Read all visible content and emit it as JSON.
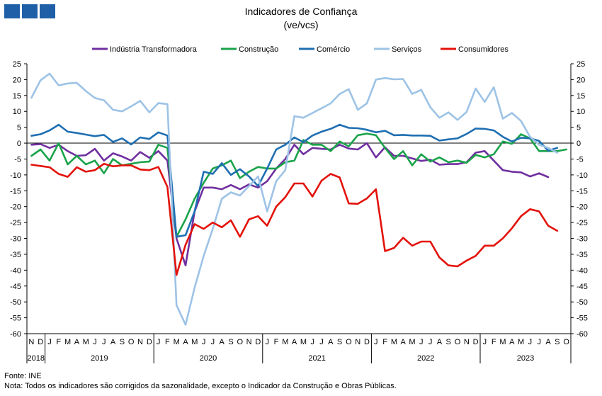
{
  "header": {
    "title": "Indicadores de Confiança",
    "subtitle": "(ve/vcs)"
  },
  "footer": {
    "source": "Fonte: INE",
    "note": "Nota: Todos os indicadores são corrigidos da sazonalidade,  excepto o Indicador da Construção e Obras Públicas."
  },
  "chart_data": {
    "type": "line",
    "title": "Indicadores de Confiança",
    "subtitle": "(ve/vcs)",
    "ylim": [
      -60,
      25
    ],
    "yticks": [
      25,
      20,
      15,
      10,
      5,
      0,
      -5,
      -10,
      -15,
      -20,
      -25,
      -30,
      -35,
      -40,
      -45,
      -50,
      -55,
      -60
    ],
    "y_right_axis": true,
    "grid": false,
    "zero_line": true,
    "legend_position": "top",
    "month_letters": [
      "N",
      "D",
      "J",
      "F",
      "M",
      "A",
      "M",
      "J",
      "J",
      "A",
      "S",
      "O",
      "N",
      "D",
      "J",
      "F",
      "M",
      "A",
      "M",
      "J",
      "J",
      "A",
      "S",
      "O",
      "N",
      "D",
      "J",
      "F",
      "M",
      "A",
      "M",
      "J",
      "J",
      "A",
      "S",
      "O",
      "N",
      "D",
      "J",
      "F",
      "M",
      "A",
      "M",
      "J",
      "J",
      "A",
      "S",
      "O",
      "N",
      "D",
      "J",
      "F",
      "M",
      "A",
      "M",
      "J",
      "J",
      "A",
      "S",
      "O"
    ],
    "x": [
      "2018-11",
      "2018-12",
      "2019-01",
      "2019-02",
      "2019-03",
      "2019-04",
      "2019-05",
      "2019-06",
      "2019-07",
      "2019-08",
      "2019-09",
      "2019-10",
      "2019-11",
      "2019-12",
      "2020-01",
      "2020-02",
      "2020-03",
      "2020-04",
      "2020-05",
      "2020-06",
      "2020-07",
      "2020-08",
      "2020-09",
      "2020-10",
      "2020-11",
      "2020-12",
      "2021-01",
      "2021-02",
      "2021-03",
      "2021-04",
      "2021-05",
      "2021-06",
      "2021-07",
      "2021-08",
      "2021-09",
      "2021-10",
      "2021-11",
      "2021-12",
      "2022-01",
      "2022-02",
      "2022-03",
      "2022-04",
      "2022-05",
      "2022-06",
      "2022-07",
      "2022-08",
      "2022-09",
      "2022-10",
      "2022-11",
      "2022-12",
      "2023-01",
      "2023-02",
      "2023-03",
      "2023-04",
      "2023-05",
      "2023-06",
      "2023-07",
      "2023-08",
      "2023-09",
      "2023-10"
    ],
    "years": [
      {
        "label": "2018",
        "start": 0,
        "end": 2
      },
      {
        "label": "2019",
        "start": 2,
        "end": 14
      },
      {
        "label": "2020",
        "start": 14,
        "end": 26
      },
      {
        "label": "2021",
        "start": 26,
        "end": 38
      },
      {
        "label": "2022",
        "start": 38,
        "end": 50
      },
      {
        "label": "2023",
        "start": 50,
        "end": 60
      }
    ],
    "series": [
      {
        "name": "Indústria Transformadora",
        "color": "#7030a0",
        "values": [
          -0.5,
          -0.3,
          -1.5,
          -0.5,
          -2.5,
          -4,
          -3.8,
          -1.8,
          -5.5,
          -3.2,
          -4.2,
          -5.5,
          -2.8,
          -4.6,
          -2.5,
          -5.5,
          -30,
          -38.5,
          -21.5,
          -14,
          -14,
          -14.5,
          -13.2,
          -14.5,
          -13,
          -14,
          -12,
          -8,
          -5,
          -0.5,
          -3.5,
          -1.5,
          -1.8,
          -2,
          -0.5,
          -1.7,
          -2,
          0,
          -4.5,
          -1.3,
          -4,
          -4,
          -4.8,
          -5.6,
          -5.2,
          -6.8,
          -6.6,
          -6.6,
          -6,
          -3,
          -2.5,
          -5.5,
          -8.5,
          -9,
          -9.2,
          -10.5,
          -9.5,
          -10.7,
          null,
          null
        ]
      },
      {
        "name": "Construção",
        "color": "#1aa34a",
        "values": [
          -4,
          -2,
          -5.5,
          0,
          -6.7,
          -4,
          -6.7,
          -5.5,
          -9.5,
          -5,
          -7,
          -6.5,
          -6,
          -5.8,
          -0.5,
          -1.5,
          -29.5,
          -24,
          -17.5,
          -12.5,
          -8,
          -7,
          -5.5,
          -11,
          -9,
          -7.5,
          -8,
          -8,
          -6,
          -5.5,
          1,
          -0.5,
          -0.5,
          -2.5,
          0.5,
          -1,
          2.5,
          3,
          2.5,
          -1.5,
          -5,
          -2.5,
          -7,
          -3.5,
          -5.8,
          -4.5,
          -6,
          -5.5,
          -6.2,
          -3.7,
          -4.5,
          -3.5,
          0.5,
          -0.2,
          2.8,
          1.5,
          -2.5,
          -2.5,
          -2.5,
          -2
        ]
      },
      {
        "name": "Comércio",
        "color": "#1f6fb2",
        "values": [
          2.3,
          2.8,
          4,
          5.8,
          3.6,
          3.2,
          2.7,
          2.2,
          2.6,
          0.4,
          1.5,
          -0.4,
          1.8,
          1.3,
          3.4,
          2.4,
          -29.5,
          -29,
          -21.5,
          -9,
          -9.7,
          -6.3,
          -10,
          -8.2,
          -10.5,
          -13.5,
          -8,
          -2,
          -0.5,
          1.8,
          0.3,
          2.4,
          3.6,
          4.5,
          5.8,
          4.8,
          4.7,
          4.2,
          3.4,
          3.9,
          2.5,
          2.6,
          2.4,
          2.4,
          2.3,
          0.8,
          1.2,
          1.5,
          2.9,
          4.6,
          4.5,
          4,
          2,
          0.5,
          1.7,
          1.5,
          0.7,
          -2.4,
          -1.5,
          null
        ]
      },
      {
        "name": "Serviços",
        "color": "#9dc3e6",
        "values": [
          14.3,
          19.8,
          21.9,
          18.2,
          18.8,
          19,
          16.4,
          14.2,
          13.5,
          10.5,
          10,
          11.6,
          13.3,
          9.7,
          12.6,
          12.3,
          -51,
          -57.2,
          -45.5,
          -35.5,
          -27,
          -17.5,
          -15.5,
          -16.5,
          -13.5,
          -10.5,
          -21.5,
          -12,
          -8.5,
          8.5,
          8,
          9.5,
          11,
          12.5,
          15.5,
          17,
          10.5,
          12.5,
          20,
          20.5,
          20.1,
          20.2,
          15.5,
          16.8,
          11.3,
          8,
          9.7,
          7.3,
          9.8,
          17.2,
          13,
          17.6,
          7.7,
          9.5,
          7,
          2,
          -0.5,
          -1.5,
          -3,
          null
        ]
      },
      {
        "name": "Consumidores",
        "color": "#e3120b",
        "values": [
          -6.8,
          -7.2,
          -7.6,
          -9.7,
          -10.6,
          -7.6,
          -9,
          -8.5,
          -6.5,
          -7.3,
          -7,
          -7,
          -8.3,
          -8.5,
          -7.5,
          -13.8,
          -41.5,
          -32,
          -25.5,
          -27,
          -25,
          -26.5,
          -24.3,
          -29.5,
          -24,
          -23,
          -26,
          -20,
          -17,
          -12.7,
          -12.7,
          -16.8,
          -11.8,
          -9.7,
          -10.8,
          -19,
          -19.1,
          -17.4,
          -14.5,
          -34,
          -33,
          -29.8,
          -32.3,
          -31,
          -31,
          -36,
          -38.5,
          -38.8,
          -37,
          -35.5,
          -32.3,
          -32.3,
          -30,
          -26.8,
          -23,
          -20.8,
          -21.5,
          -26,
          -27.6,
          null
        ]
      }
    ]
  }
}
